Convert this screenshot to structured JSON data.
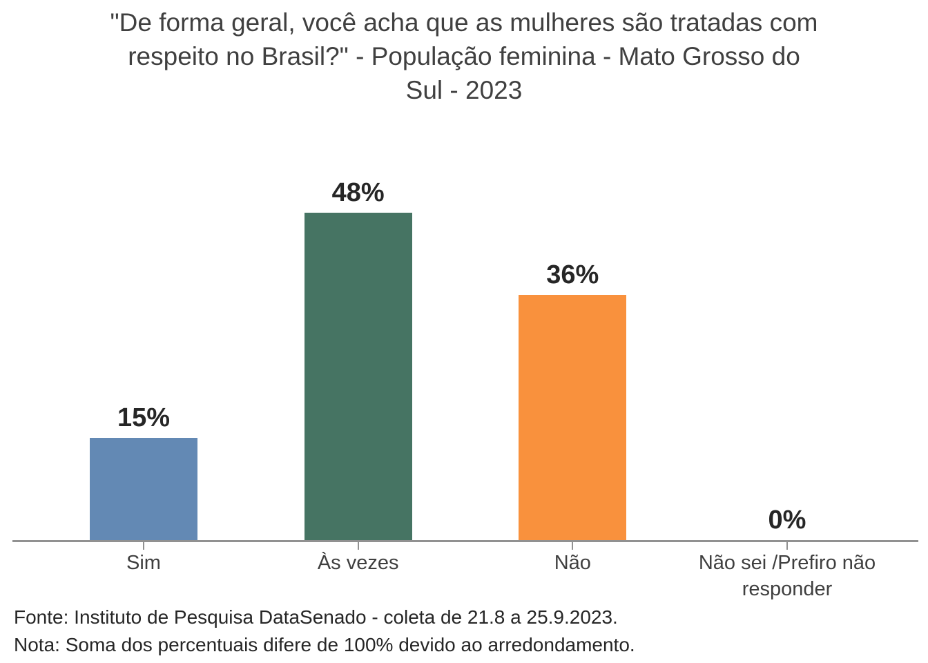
{
  "chart_data": {
    "type": "bar",
    "title": "\"De forma geral, você acha que as mulheres são tratadas com respeito no Brasil?\" - População feminina - Mato Grosso do Sul - 2023",
    "title_lines": [
      "\"De forma geral, você acha que as mulheres são tratadas com",
      "respeito no Brasil?\" - População feminina - Mato Grosso do",
      "Sul - 2023"
    ],
    "categories": [
      "Sim",
      "Às vezes",
      "Não",
      "Não sei /Prefiro não responder"
    ],
    "values": [
      15,
      48,
      36,
      0
    ],
    "value_labels": [
      "15%",
      "48%",
      "36%",
      "0%"
    ],
    "bar_colors": [
      "#6389B4",
      "#467463",
      "#F9913D",
      "#BFBFBF"
    ],
    "xlabel": "",
    "ylabel": "",
    "ylim": [
      0,
      55
    ],
    "grid": false,
    "legend": "none",
    "notes": [
      "Fonte: Instituto de Pesquisa DataSenado - coleta de 21.8 a 25.9.2023.",
      "Nota: Soma dos percentuais difere de 100% devido ao arredondamento."
    ]
  },
  "colors": {
    "title_text": "#404040",
    "value_label_text": "#262626",
    "category_text": "#3F3F3F",
    "note_text": "#262626",
    "axis_line": "#919191"
  }
}
